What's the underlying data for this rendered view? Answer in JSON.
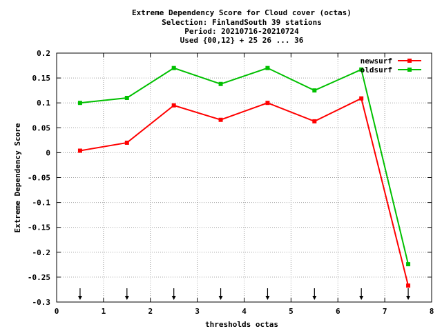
{
  "chart_data": {
    "type": "line",
    "title_lines": [
      "Extreme Dependency Score  for Cloud cover (octas)",
      "Selection: FinlandSouth     39 stations",
      "Period: 20210716-20210724",
      "Used {00,12} + 25 26 ... 36"
    ],
    "xlabel": "thresholds octas",
    "ylabel": "Extreme Dependency Score",
    "xlim": [
      0,
      8
    ],
    "ylim": [
      -0.3,
      0.2
    ],
    "x_ticks": [
      0,
      1,
      2,
      3,
      4,
      5,
      6,
      7,
      8
    ],
    "x_tick_labels": [
      "0",
      "1",
      "2",
      "3",
      "4",
      "5",
      "6",
      "7",
      "8"
    ],
    "y_ticks": [
      -0.3,
      -0.25,
      -0.2,
      -0.15,
      -0.1,
      -0.05,
      0,
      0.05,
      0.1,
      0.15,
      0.2
    ],
    "y_tick_labels": [
      "-0.3",
      "-0.25",
      "-0.2",
      "-0.15",
      "-0.1",
      "-0.05",
      "0",
      "0.05",
      "0.1",
      "0.15",
      "0.2"
    ],
    "grid": true,
    "legend_position": "top-right",
    "x": [
      0.5,
      1.5,
      2.5,
      3.5,
      4.5,
      5.5,
      6.5,
      7.5
    ],
    "series": [
      {
        "name": "newsurf",
        "color": "#ff0000",
        "values": [
          0.004,
          0.02,
          0.095,
          0.066,
          0.1,
          0.063,
          0.109,
          -0.267
        ]
      },
      {
        "name": "oldsurf",
        "color": "#00c000",
        "values": [
          0.1,
          0.11,
          0.17,
          0.138,
          0.17,
          0.125,
          0.167,
          -0.224
        ]
      }
    ],
    "threshold_arrows_x": [
      0.5,
      1.5,
      2.5,
      3.5,
      4.5,
      5.5,
      6.5,
      7.5
    ]
  }
}
